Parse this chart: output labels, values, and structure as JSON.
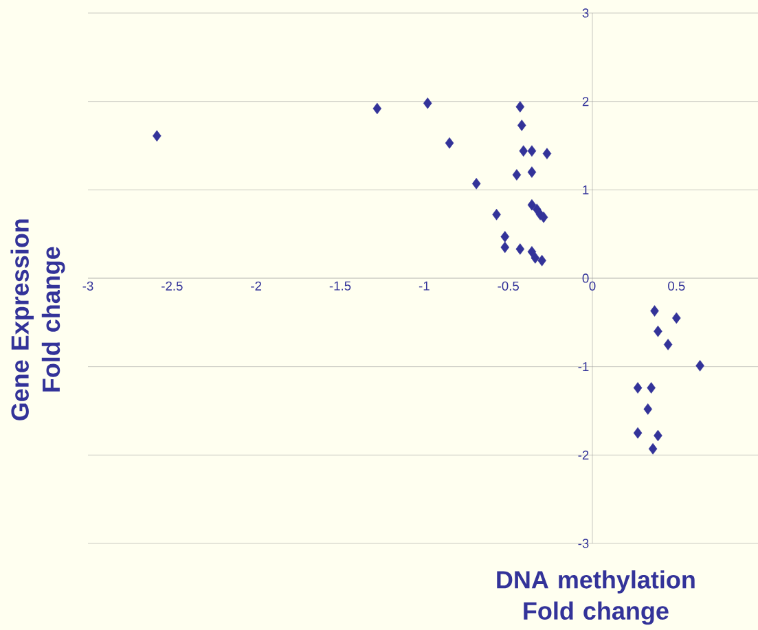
{
  "chart_data": {
    "type": "scatter",
    "xlabel": "DNA methylation Fold change",
    "ylabel": "Gene Expression Fold change",
    "xlim": [
      -3,
      1
    ],
    "ylim": [
      -3,
      3
    ],
    "xticks": [
      -3,
      -2.5,
      -2,
      -1.5,
      -1,
      -0.5,
      0,
      0.5
    ],
    "yticks": [
      -3,
      -2,
      -1,
      0,
      1,
      2,
      3
    ],
    "grid": "y",
    "marker": "diamond",
    "series": [
      {
        "color": "#333399",
        "x": [
          -2.59,
          -1.28,
          -0.98,
          -0.85,
          -0.69,
          -0.57,
          -0.52,
          -0.52,
          -0.43,
          -0.42,
          -0.41,
          -0.36,
          -0.27,
          -0.45,
          -0.36,
          -0.36,
          -0.33,
          -0.31,
          -0.29,
          -0.43,
          -0.36,
          -0.34,
          -0.3,
          0.37,
          0.5,
          0.39,
          0.45,
          0.64,
          0.27,
          0.35,
          0.33,
          0.27,
          0.39,
          0.36
        ],
        "values": [
          1.61,
          1.92,
          1.98,
          1.53,
          1.07,
          0.72,
          0.47,
          0.35,
          1.94,
          1.73,
          1.44,
          1.44,
          1.41,
          1.17,
          1.2,
          0.83,
          0.78,
          0.72,
          0.69,
          0.33,
          0.3,
          0.23,
          0.2,
          -0.37,
          -0.45,
          -0.6,
          -0.75,
          -0.99,
          -1.24,
          -1.24,
          -1.48,
          -1.75,
          -1.78,
          -1.93
        ]
      }
    ]
  }
}
